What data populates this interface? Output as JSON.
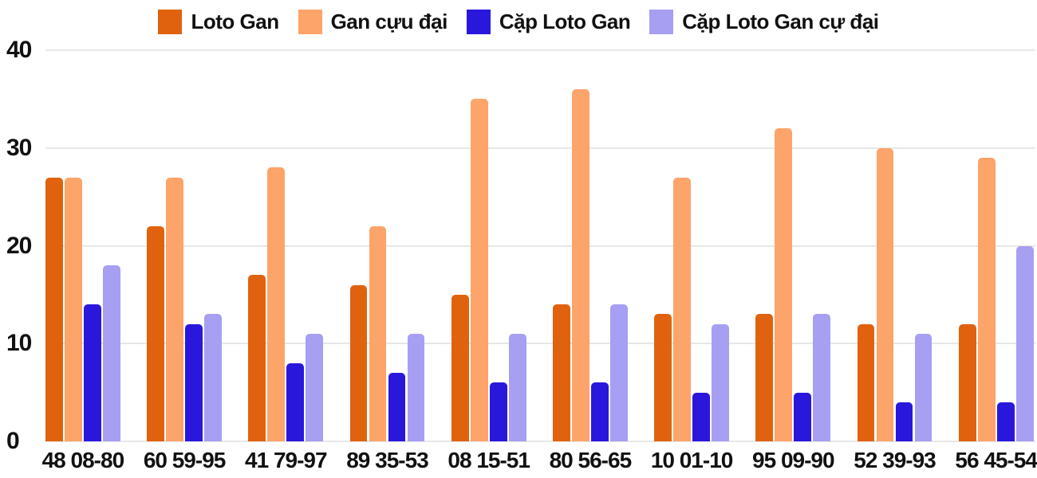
{
  "chart_data": {
    "type": "bar",
    "title": "",
    "xlabel": "",
    "ylabel": "",
    "categories": [
      "48 08-80",
      "60 59-95",
      "41 79-97",
      "89 35-53",
      "08 15-51",
      "80 56-65",
      "10 01-10",
      "95 09-90",
      "52 39-93",
      "56 45-54"
    ],
    "series": [
      {
        "name": "Loto Gan",
        "color": "#e0620f",
        "values": [
          27,
          22,
          17,
          16,
          15,
          14,
          13,
          13,
          12,
          12
        ]
      },
      {
        "name": "Gan cựu đại",
        "color": "#fda46a",
        "values": [
          27,
          27,
          28,
          22,
          35,
          36,
          27,
          32,
          30,
          29
        ]
      },
      {
        "name": "Cặp Loto Gan",
        "color": "#2a17dc",
        "values": [
          14,
          12,
          8,
          7,
          6,
          6,
          5,
          5,
          4,
          4
        ]
      },
      {
        "name": "Cặp Loto Gan cự đại",
        "color": "#a79ff2",
        "values": [
          18,
          13,
          11,
          11,
          11,
          14,
          12,
          13,
          11,
          20
        ]
      }
    ],
    "ylim": [
      0,
      40
    ],
    "yticks": [
      0,
      10,
      20,
      30,
      40
    ],
    "grid": true,
    "legend_position": "top"
  },
  "style": {
    "text_color": "#111111",
    "gridline_color": "#e7e7e7",
    "background": "#ffffff"
  }
}
